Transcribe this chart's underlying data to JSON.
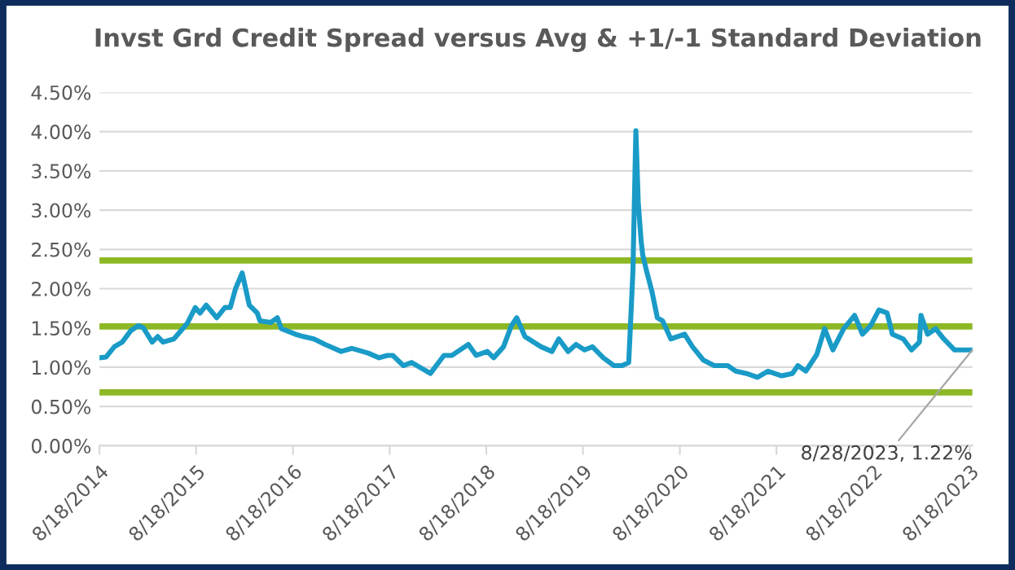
{
  "chart_data": {
    "type": "line",
    "title": "Invst Grd Credit Spread versus Avg & +1/-1 Standard Deviation",
    "x": [
      "2014-08-18",
      "2014-09-12",
      "2014-10-13",
      "2014-11-12",
      "2014-12-13",
      "2015-01-12",
      "2015-01-31",
      "2015-03-05",
      "2015-03-26",
      "2015-04-15",
      "2015-05-26",
      "2015-07-16",
      "2015-08-15",
      "2015-09-02",
      "2015-09-25",
      "2015-11-04",
      "2015-12-05",
      "2015-12-25",
      "2016-01-14",
      "2016-02-08",
      "2016-03-06",
      "2016-04-05",
      "2016-04-15",
      "2016-05-26",
      "2016-06-20",
      "2016-07-05",
      "2016-08-27",
      "2016-09-26",
      "2016-11-05",
      "2016-12-17",
      "2017-02-16",
      "2017-03-29",
      "2017-05-29",
      "2017-07-09",
      "2017-08-09",
      "2017-08-30",
      "2017-10-09",
      "2017-11-09",
      "2018-01-19",
      "2018-03-11",
      "2018-04-10",
      "2018-06-11",
      "2018-07-11",
      "2018-08-22",
      "2018-09-15",
      "2018-10-22",
      "2018-11-21",
      "2018-12-11",
      "2019-01-11",
      "2019-03-13",
      "2019-04-23",
      "2019-05-19",
      "2019-06-23",
      "2019-07-23",
      "2019-08-24",
      "2019-09-23",
      "2019-11-03",
      "2019-12-13",
      "2020-01-13",
      "2020-02-07",
      "2020-02-13",
      "2020-02-23",
      "2020-03-05",
      "2020-03-14",
      "2020-03-25",
      "2020-03-31",
      "2020-04-14",
      "2020-05-05",
      "2020-05-25",
      "2020-06-14",
      "2020-07-15",
      "2020-09-05",
      "2020-10-05",
      "2020-11-15",
      "2020-12-26",
      "2021-02-15",
      "2021-03-17",
      "2021-04-27",
      "2021-06-07",
      "2021-07-17",
      "2021-09-07",
      "2021-10-17",
      "2021-11-07",
      "2021-12-07",
      "2022-01-17",
      "2022-02-16",
      "2022-03-19",
      "2022-04-29",
      "2022-06-09",
      "2022-07-09",
      "2022-08-09",
      "2022-09-09",
      "2022-10-10",
      "2022-10-30",
      "2022-12-10",
      "2023-01-10",
      "2023-02-09",
      "2023-02-15",
      "2023-03-12",
      "2023-04-11",
      "2023-05-12",
      "2023-06-21",
      "2023-08-28"
    ],
    "series": [
      {
        "color": "#1a9bc7",
        "values": [
          1.12,
          1.13,
          1.26,
          1.32,
          1.46,
          1.53,
          1.5,
          1.32,
          1.39,
          1.32,
          1.36,
          1.56,
          1.76,
          1.69,
          1.79,
          1.63,
          1.76,
          1.76,
          2.0,
          2.2,
          1.79,
          1.69,
          1.59,
          1.57,
          1.63,
          1.49,
          1.42,
          1.39,
          1.36,
          1.29,
          1.2,
          1.24,
          1.18,
          1.12,
          1.15,
          1.15,
          1.02,
          1.06,
          0.92,
          1.15,
          1.15,
          1.29,
          1.15,
          1.2,
          1.12,
          1.26,
          1.53,
          1.63,
          1.39,
          1.26,
          1.2,
          1.36,
          1.2,
          1.29,
          1.22,
          1.26,
          1.12,
          1.02,
          1.02,
          1.06,
          1.49,
          2.23,
          4.01,
          3.1,
          2.6,
          2.43,
          2.23,
          1.96,
          1.63,
          1.59,
          1.36,
          1.42,
          1.26,
          1.09,
          1.02,
          1.02,
          0.95,
          0.92,
          0.87,
          0.95,
          0.89,
          0.92,
          1.02,
          0.95,
          1.16,
          1.49,
          1.22,
          1.49,
          1.66,
          1.42,
          1.53,
          1.73,
          1.69,
          1.42,
          1.36,
          1.22,
          1.32,
          1.66,
          1.42,
          1.49,
          1.36,
          1.22,
          1.22
        ]
      }
    ],
    "ref_lines": [
      {
        "axis": "y",
        "value": 2.36,
        "color": "#8db825"
      },
      {
        "axis": "y",
        "value": 1.52,
        "color": "#8db825"
      },
      {
        "axis": "y",
        "value": 0.68,
        "color": "#8db825"
      }
    ],
    "xlim": [
      "2014-08-18",
      "2023-08-28"
    ],
    "xticks": [
      {
        "value": "2014-08-18",
        "label": "8/18/2014"
      },
      {
        "value": "2015-08-18",
        "label": "8/18/2015"
      },
      {
        "value": "2016-08-18",
        "label": "8/18/2016"
      },
      {
        "value": "2017-08-18",
        "label": "8/18/2017"
      },
      {
        "value": "2018-08-18",
        "label": "8/18/2018"
      },
      {
        "value": "2019-08-18",
        "label": "8/18/2019"
      },
      {
        "value": "2020-08-18",
        "label": "8/18/2020"
      },
      {
        "value": "2021-08-18",
        "label": "8/18/2021"
      },
      {
        "value": "2022-08-18",
        "label": "8/18/2022"
      },
      {
        "value": "2023-08-18",
        "label": "8/18/2023"
      }
    ],
    "ylim": [
      0,
      4.5
    ],
    "yticks": [
      {
        "value": 0,
        "label": "0.00%"
      },
      {
        "value": 0.5,
        "label": "0.50%"
      },
      {
        "value": 1,
        "label": "1.00%"
      },
      {
        "value": 1.5,
        "label": "1.50%"
      },
      {
        "value": 2,
        "label": "2.00%"
      },
      {
        "value": 2.5,
        "label": "2.50%"
      },
      {
        "value": 3,
        "label": "3.00%"
      },
      {
        "value": 3.5,
        "label": "3.50%"
      },
      {
        "value": 4,
        "label": "4.00%"
      },
      {
        "value": 4.5,
        "label": "4.50%"
      }
    ],
    "grid": "y",
    "legend": false,
    "marker": "none",
    "line_style": "solid",
    "annotations": [
      {
        "text": "8/28/2023, 1.22%",
        "x": "2023-08-28",
        "y": 1.22
      }
    ]
  }
}
